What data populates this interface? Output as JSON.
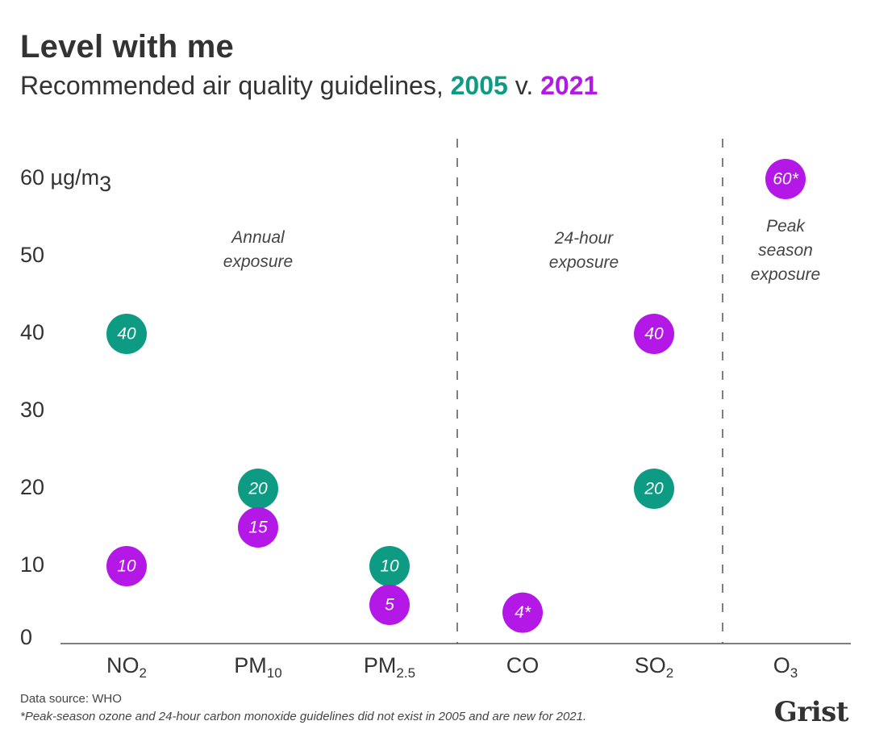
{
  "header": {
    "title": "Level with me",
    "subtitle_prefix": "Recommended air quality guidelines, ",
    "subtitle_2005": "2005",
    "subtitle_mid": " v. ",
    "subtitle_2021": "2021"
  },
  "footer": {
    "source": "Data source: WHO",
    "note": "*Peak-season ozone and 24-hour carbon monoxide guidelines did not exist in 2005 and are new for 2021.",
    "logo": "Grist"
  },
  "colors": {
    "series_2005": "#0e9b83",
    "series_2021": "#b318e6",
    "axis": "#555555",
    "text": "#333333"
  },
  "chart_data": {
    "type": "scatter",
    "title": "Level with me",
    "subtitle": "Recommended air quality guidelines, 2005 v. 2021",
    "ylabel": "µg/m3",
    "ylim": [
      0,
      60
    ],
    "yticks": [
      {
        "value": 0,
        "label": "0"
      },
      {
        "value": 10,
        "label": "10"
      },
      {
        "value": 20,
        "label": "20"
      },
      {
        "value": 30,
        "label": "30"
      },
      {
        "value": 40,
        "label": "40"
      },
      {
        "value": 50,
        "label": "50"
      },
      {
        "value": 60,
        "label": "60 µg/m",
        "sub": "3"
      }
    ],
    "categories": [
      {
        "main": "NO",
        "sub": "2"
      },
      {
        "main": "PM",
        "sub": "10"
      },
      {
        "main": "PM",
        "sub": "2.5"
      },
      {
        "main": "CO",
        "sub": ""
      },
      {
        "main": "SO",
        "sub": "2"
      },
      {
        "main": "O",
        "sub": "3"
      }
    ],
    "groups": [
      {
        "lines": [
          "Annual",
          "exposure"
        ],
        "categories": [
          0,
          1,
          2
        ]
      },
      {
        "lines": [
          "24-hour",
          "exposure"
        ],
        "categories": [
          3,
          4
        ]
      },
      {
        "lines": [
          "Peak",
          "season",
          "exposure"
        ],
        "categories": [
          5
        ]
      }
    ],
    "series": [
      {
        "name": "2005",
        "color": "#0e9b83",
        "points": [
          {
            "category": 0,
            "value": 40,
            "label": "40"
          },
          {
            "category": 1,
            "value": 20,
            "label": "20"
          },
          {
            "category": 2,
            "value": 10,
            "label": "10"
          },
          {
            "category": 4,
            "value": 20,
            "label": "20"
          }
        ]
      },
      {
        "name": "2021",
        "color": "#b318e6",
        "points": [
          {
            "category": 0,
            "value": 10,
            "label": "10"
          },
          {
            "category": 1,
            "value": 15,
            "label": "15"
          },
          {
            "category": 2,
            "value": 5,
            "label": "5"
          },
          {
            "category": 3,
            "value": 4,
            "label": "4*"
          },
          {
            "category": 4,
            "value": 40,
            "label": "40"
          },
          {
            "category": 5,
            "value": 60,
            "label": "60*"
          }
        ]
      }
    ]
  }
}
